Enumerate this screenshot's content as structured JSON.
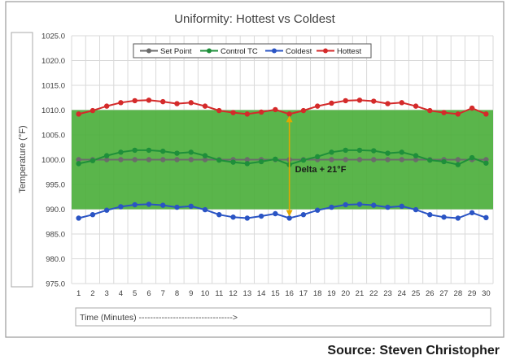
{
  "chart_data": {
    "type": "line",
    "title": "Uniformity: Hottest vs Coldest",
    "ylabel": "Temperature (°F)",
    "xlabel": "Time (Minutes) --------------------------------->",
    "ylim": [
      975.0,
      1025.0
    ],
    "yticks": [
      "975.0",
      "980.0",
      "985.0",
      "990.0",
      "995.0",
      "1000.0",
      "1005.0",
      "1010.0",
      "1015.0",
      "1020.0",
      "1025.0"
    ],
    "x": [
      1,
      2,
      3,
      4,
      5,
      6,
      7,
      8,
      9,
      10,
      11,
      12,
      13,
      14,
      15,
      16,
      17,
      18,
      19,
      20,
      21,
      22,
      23,
      24,
      25,
      26,
      27,
      28,
      29,
      30
    ],
    "grid": true,
    "legend_position": "top-center",
    "band": {
      "from": 990.0,
      "to": 1010.0,
      "color": "#4caf3c"
    },
    "series": [
      {
        "name": "Set Point",
        "color": "#6b6b6b",
        "values": [
          1000,
          1000,
          1000,
          1000,
          1000,
          1000,
          1000,
          1000,
          1000,
          1000,
          1000,
          1000,
          1000,
          1000,
          1000,
          1000,
          1000,
          1000,
          1000,
          1000,
          1000,
          1000,
          1000,
          1000,
          1000,
          1000,
          1000,
          1000,
          1000,
          1000
        ]
      },
      {
        "name": "Control TC",
        "color": "#1e8f3a",
        "values": [
          999.2,
          999.8,
          1000.8,
          1001.5,
          1001.9,
          1001.9,
          1001.7,
          1001.3,
          1001.5,
          1000.8,
          999.9,
          999.5,
          999.2,
          999.6,
          1000.1,
          999.0,
          999.9,
          1000.6,
          1001.5,
          1001.9,
          1001.9,
          1001.8,
          1001.3,
          1001.5,
          1000.8,
          999.9,
          999.6,
          999.0,
          1000.4,
          999.3
        ]
      },
      {
        "name": "Coldest",
        "color": "#2a54c4",
        "values": [
          988.2,
          988.9,
          989.8,
          990.5,
          990.9,
          991.0,
          990.8,
          990.4,
          990.6,
          989.9,
          988.9,
          988.4,
          988.2,
          988.6,
          989.1,
          988.2,
          988.9,
          989.8,
          990.4,
          990.9,
          991.0,
          990.8,
          990.4,
          990.6,
          989.9,
          988.9,
          988.4,
          988.2,
          989.3,
          988.3
        ]
      },
      {
        "name": "Hottest",
        "color": "#d42a2a",
        "values": [
          1009.2,
          1009.9,
          1010.8,
          1011.5,
          1011.9,
          1012.0,
          1011.7,
          1011.3,
          1011.5,
          1010.8,
          1009.9,
          1009.5,
          1009.2,
          1009.6,
          1010.1,
          1009.2,
          1009.9,
          1010.8,
          1011.4,
          1011.9,
          1012.0,
          1011.8,
          1011.3,
          1011.5,
          1010.8,
          1009.9,
          1009.5,
          1009.2,
          1010.4,
          1009.2
        ]
      }
    ],
    "annotation": {
      "text": "Delta + 21°F",
      "x": 16,
      "from": 988.2,
      "to": 1009.2,
      "color": "#e0a800"
    }
  },
  "source": "Source: Steven Christopher"
}
